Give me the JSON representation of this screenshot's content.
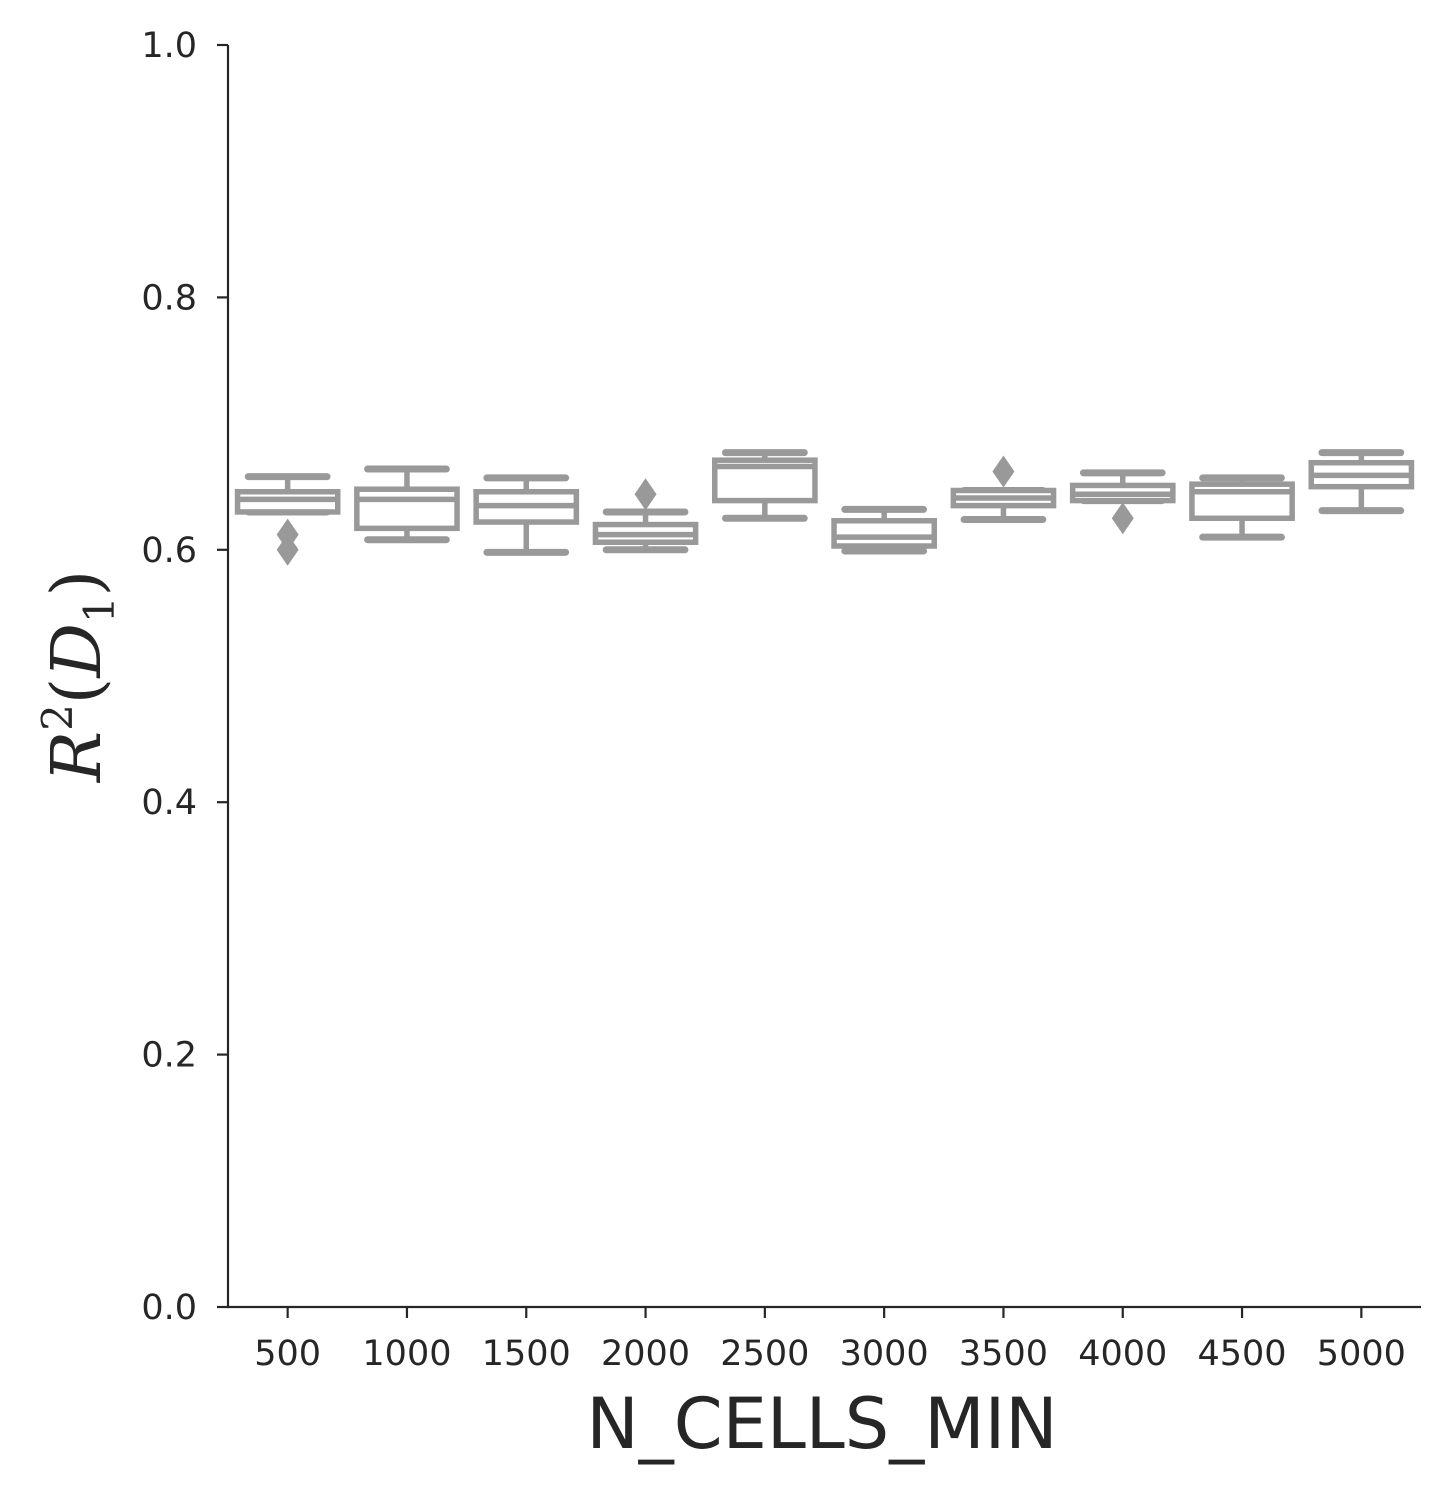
{
  "chart_data": {
    "type": "box",
    "xlabel": "N_CELLS_MIN",
    "ylabel_parts": {
      "prefix": "R",
      "superscript": "2",
      "open": "(",
      "symbol": "D",
      "subscript": "1",
      "close": ")"
    },
    "ylim": [
      0.0,
      1.0
    ],
    "yticks": [
      "0.0",
      "0.2",
      "0.4",
      "0.6",
      "0.8",
      "1.0"
    ],
    "color": "#999999",
    "categories": [
      "500",
      "1000",
      "1500",
      "2000",
      "2500",
      "3000",
      "3500",
      "4000",
      "4500",
      "5000"
    ],
    "boxes": [
      {
        "category": "500",
        "whisker_low": 0.63,
        "q1": 0.63,
        "median": 0.64,
        "q3": 0.646,
        "whisker_high": 0.658,
        "outliers": [
          0.612,
          0.6
        ]
      },
      {
        "category": "1000",
        "whisker_low": 0.608,
        "q1": 0.617,
        "median": 0.64,
        "q3": 0.648,
        "whisker_high": 0.664,
        "outliers": []
      },
      {
        "category": "1500",
        "whisker_low": 0.598,
        "q1": 0.622,
        "median": 0.635,
        "q3": 0.646,
        "whisker_high": 0.657,
        "outliers": []
      },
      {
        "category": "2000",
        "whisker_low": 0.6,
        "q1": 0.606,
        "median": 0.612,
        "q3": 0.62,
        "whisker_high": 0.63,
        "outliers": [
          0.644
        ]
      },
      {
        "category": "2500",
        "whisker_low": 0.625,
        "q1": 0.639,
        "median": 0.666,
        "q3": 0.671,
        "whisker_high": 0.677,
        "outliers": []
      },
      {
        "category": "3000",
        "whisker_low": 0.599,
        "q1": 0.603,
        "median": 0.61,
        "q3": 0.623,
        "whisker_high": 0.632,
        "outliers": []
      },
      {
        "category": "3500",
        "whisker_low": 0.624,
        "q1": 0.635,
        "median": 0.641,
        "q3": 0.647,
        "whisker_high": 0.647,
        "outliers": [
          0.662
        ]
      },
      {
        "category": "4000",
        "whisker_low": 0.639,
        "q1": 0.639,
        "median": 0.644,
        "q3": 0.651,
        "whisker_high": 0.661,
        "outliers": [
          0.625
        ]
      },
      {
        "category": "4500",
        "whisker_low": 0.61,
        "q1": 0.625,
        "median": 0.646,
        "q3": 0.652,
        "whisker_high": 0.657,
        "outliers": []
      },
      {
        "category": "5000",
        "whisker_low": 0.631,
        "q1": 0.65,
        "median": 0.659,
        "q3": 0.669,
        "whisker_high": 0.677,
        "outliers": []
      }
    ],
    "grid": false,
    "spines": "left-bottom"
  }
}
